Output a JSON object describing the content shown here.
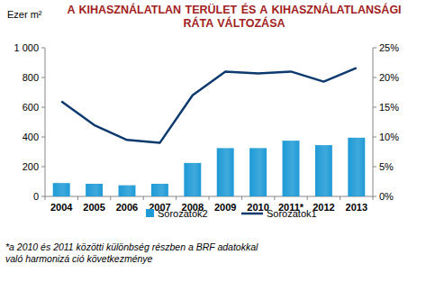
{
  "chart_data": {
    "type": "bar",
    "title": "A KIHASZNÁLATLAN TERÜLET ÉS A KIHASZNÁLATLANSÁGI RÁTA VÁLTOZÁSA",
    "y_label": "Ezer m²",
    "categories": [
      "2004",
      "2005",
      "2006",
      "2007",
      "2008",
      "2009",
      "2010",
      "2011*",
      "2012",
      "2013"
    ],
    "series": [
      {
        "name": "Sorozatok2",
        "type": "bar",
        "color": "#1e9ad6",
        "values": [
          90,
          85,
          75,
          85,
          225,
          325,
          325,
          375,
          345,
          395
        ]
      },
      {
        "name": "Sorozatok1",
        "type": "line",
        "axis": "y2",
        "color": "#0d3a6e",
        "values": [
          16,
          12,
          9.5,
          9,
          17,
          21,
          20.7,
          21,
          19.3,
          21.6
        ]
      }
    ],
    "ylim": [
      0,
      1000
    ],
    "yticks": [
      0,
      200,
      400,
      600,
      800,
      {
        "value": 1000,
        "label": "1 000"
      }
    ],
    "y2lim": [
      0,
      25
    ],
    "y2ticks": [
      {
        "value": 0,
        "label": "0%"
      },
      {
        "value": 5,
        "label": "5%"
      },
      {
        "value": 10,
        "label": "10%"
      },
      {
        "value": 15,
        "label": "15%"
      },
      {
        "value": 20,
        "label": "20%"
      },
      {
        "value": 25,
        "label": "25%"
      }
    ],
    "grid": false,
    "legend": "bottom",
    "annotations": [
      "*a 2010 és 2011 közötti különbség részben a BRF adatokkal való harmonizá ció következménye"
    ]
  }
}
